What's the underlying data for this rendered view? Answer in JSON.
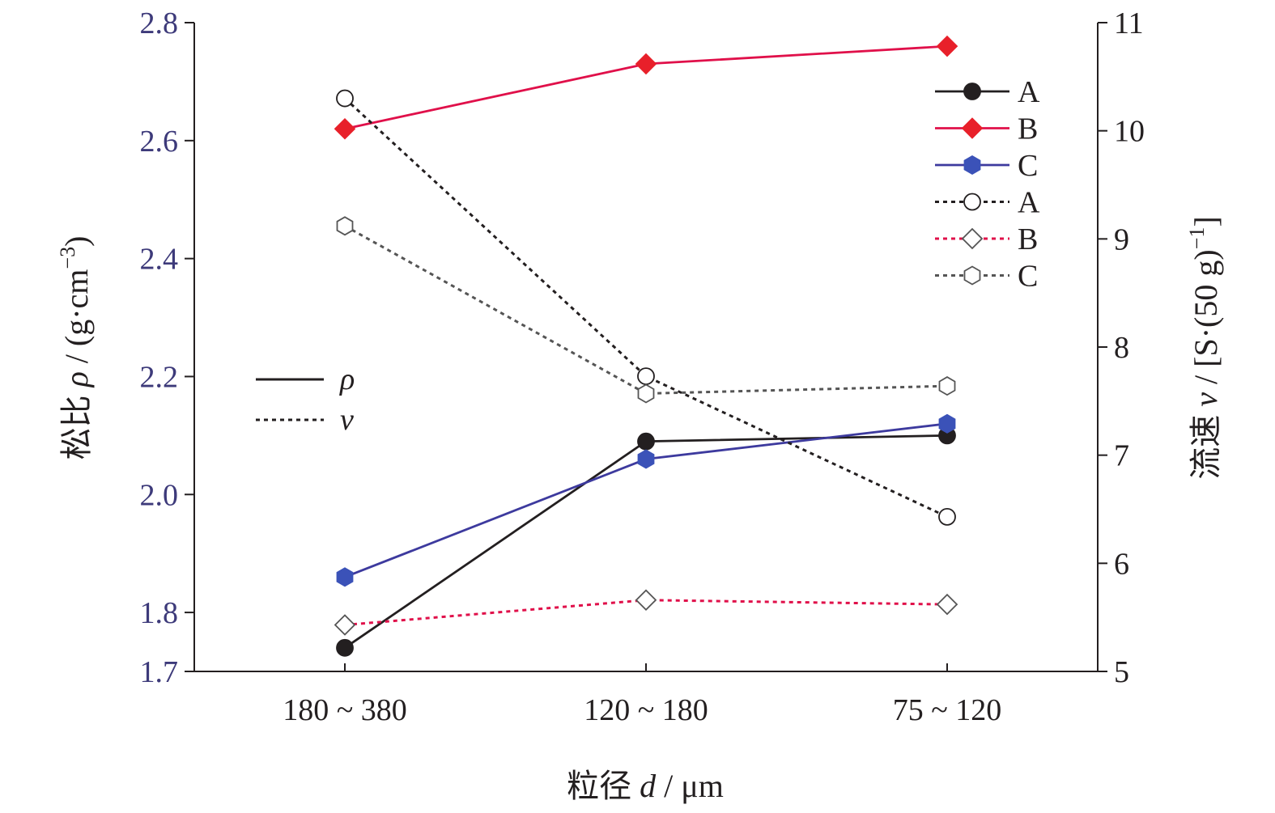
{
  "chart_data": {
    "type": "line",
    "categories": [
      "180 ~ 380",
      "120 ~ 180",
      "75 ~ 120"
    ],
    "xlabel_parts": [
      "粒径 ",
      "d",
      " / μm"
    ],
    "y_left": {
      "label_parts": [
        "松比 ",
        "ρ",
        " / (g·cm",
        "−3",
        ")"
      ],
      "ylim": [
        1.7,
        2.8
      ],
      "ticks": [
        "1.7",
        "1.8",
        "2.0",
        "2.2",
        "2.4",
        "2.6",
        "2.8"
      ],
      "color": "#3d3a7a"
    },
    "y_right": {
      "label_parts": [
        "流速 ",
        "v",
        " / [S·(50 g)",
        "−1",
        "]"
      ],
      "ylim": [
        5,
        11
      ],
      "ticks": [
        "5",
        "6",
        "7",
        "8",
        "9",
        "10",
        "11"
      ]
    },
    "series": [
      {
        "name": "A",
        "axis": "left",
        "style": "solid",
        "marker": "circle",
        "filled": true,
        "color": "#231f20",
        "values": [
          1.74,
          2.09,
          2.1
        ]
      },
      {
        "name": "B",
        "axis": "left",
        "style": "solid",
        "marker": "diamond",
        "filled": true,
        "color": "#e0104a",
        "marker_color": "#e8202a",
        "values": [
          2.62,
          2.73,
          2.76
        ]
      },
      {
        "name": "C",
        "axis": "left",
        "style": "solid",
        "marker": "hexagon",
        "filled": true,
        "color": "#3d3a9e",
        "marker_color": "#3b52b8",
        "values": [
          1.86,
          2.06,
          2.12
        ]
      },
      {
        "name": "A",
        "axis": "right",
        "style": "dotted",
        "marker": "circle",
        "filled": false,
        "color": "#231f20",
        "values": [
          10.3,
          7.73,
          6.43
        ]
      },
      {
        "name": "B",
        "axis": "right",
        "style": "dotted",
        "marker": "diamond",
        "filled": false,
        "color": "#e0104a",
        "marker_color": "#555555",
        "values": [
          5.43,
          5.66,
          5.62
        ]
      },
      {
        "name": "C",
        "axis": "right",
        "style": "dotted",
        "marker": "hexagon",
        "filled": false,
        "color": "#555555",
        "values": [
          9.12,
          7.57,
          7.64
        ]
      }
    ],
    "style_legend": [
      {
        "label": "ρ",
        "style": "solid"
      },
      {
        "label": "v",
        "style": "dotted"
      }
    ],
    "legend_position": "top-right",
    "grid": false
  }
}
